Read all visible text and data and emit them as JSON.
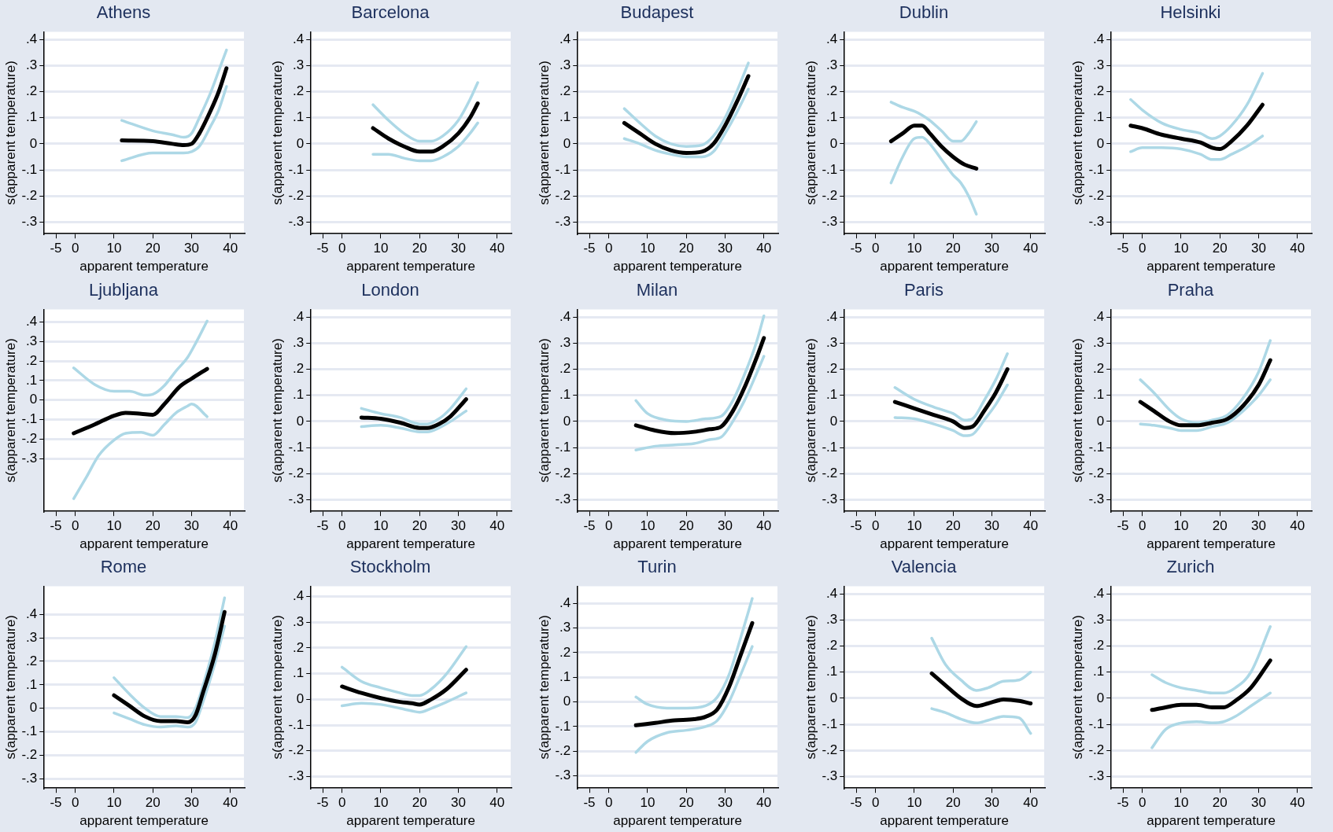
{
  "chart_data": [
    {
      "type": "line",
      "title": "Athens",
      "xlabel": "apparent temperature",
      "ylabel": "s(apparent temperature)",
      "xlim": [
        -8,
        43.5
      ],
      "xticks": [
        -5,
        0,
        10,
        20,
        30,
        40
      ],
      "ylim": [
        -0.345,
        0.43
      ],
      "yticks": [
        {
          "value": -0.3,
          "label": "-.3"
        },
        {
          "value": -0.2,
          "label": "-.2"
        },
        {
          "value": -0.1,
          "label": "-.1"
        },
        {
          "value": 0,
          "label": "0"
        },
        {
          "value": 0.1,
          "label": ".1"
        },
        {
          "value": 0.2,
          "label": ".2"
        },
        {
          "value": 0.3,
          "label": ".3"
        },
        {
          "value": 0.4,
          "label": ".4"
        }
      ],
      "grid": "y",
      "series": [
        {
          "color": "#add8e6",
          "x": [
            12,
            20,
            25,
            28,
            30,
            32,
            35,
            37,
            39
          ],
          "values": [
            -0.065,
            -0.035,
            -0.035,
            -0.035,
            -0.03,
            -0.01,
            0.07,
            0.13,
            0.22
          ]
        },
        {
          "color": "#add8e6",
          "x": [
            12,
            20,
            25,
            28,
            30,
            32,
            35,
            37,
            39
          ],
          "values": [
            0.09,
            0.05,
            0.035,
            0.025,
            0.04,
            0.1,
            0.2,
            0.28,
            0.36
          ]
        },
        {
          "color": "#000000",
          "x": [
            12,
            20,
            25,
            28,
            30,
            32,
            35,
            37,
            39
          ],
          "values": [
            0.013,
            0.01,
            0,
            -0.005,
            0,
            0.04,
            0.13,
            0.2,
            0.29
          ]
        }
      ]
    },
    {
      "type": "line",
      "title": "Barcelona",
      "xlabel": "apparent temperature",
      "ylabel": "s(apparent temperature)",
      "xlim": [
        -8,
        43.5
      ],
      "xticks": [
        -5,
        0,
        10,
        20,
        30,
        40
      ],
      "ylim": [
        -0.345,
        0.43
      ],
      "yticks": [
        {
          "value": -0.3,
          "label": "-.3"
        },
        {
          "value": -0.2,
          "label": "-.2"
        },
        {
          "value": -0.1,
          "label": "-.1"
        },
        {
          "value": 0,
          "label": "0"
        },
        {
          "value": 0.1,
          "label": ".1"
        },
        {
          "value": 0.2,
          "label": ".2"
        },
        {
          "value": 0.3,
          "label": ".3"
        },
        {
          "value": 0.4,
          "label": ".4"
        }
      ],
      "grid": "y",
      "series": [
        {
          "color": "#add8e6",
          "x": [
            8,
            12,
            16,
            20,
            23,
            26,
            30,
            33,
            35
          ],
          "values": [
            -0.04,
            -0.04,
            -0.055,
            -0.065,
            -0.065,
            -0.05,
            -0.01,
            0.04,
            0.08
          ]
        },
        {
          "color": "#add8e6",
          "x": [
            8,
            12,
            16,
            20,
            23,
            26,
            30,
            33,
            35
          ],
          "values": [
            0.15,
            0.09,
            0.04,
            0.01,
            0.01,
            0.03,
            0.09,
            0.17,
            0.235
          ]
        },
        {
          "color": "#000000",
          "x": [
            8,
            12,
            16,
            20,
            23,
            26,
            30,
            33,
            35
          ],
          "values": [
            0.06,
            0.02,
            -0.01,
            -0.03,
            -0.03,
            -0.01,
            0.04,
            0.1,
            0.155
          ]
        }
      ]
    },
    {
      "type": "line",
      "title": "Budapest",
      "xlabel": "apparent temperature",
      "ylabel": "s(apparent temperature)",
      "xlim": [
        -8,
        43.5
      ],
      "xticks": [
        -5,
        0,
        10,
        20,
        30,
        40
      ],
      "ylim": [
        -0.345,
        0.43
      ],
      "yticks": [
        {
          "value": -0.3,
          "label": "-.3"
        },
        {
          "value": -0.2,
          "label": "-.2"
        },
        {
          "value": -0.1,
          "label": "-.1"
        },
        {
          "value": 0,
          "label": "0"
        },
        {
          "value": 0.1,
          "label": ".1"
        },
        {
          "value": 0.2,
          "label": ".2"
        },
        {
          "value": 0.3,
          "label": ".3"
        },
        {
          "value": 0.4,
          "label": ".4"
        }
      ],
      "grid": "y",
      "series": [
        {
          "color": "#add8e6",
          "x": [
            4,
            8,
            12,
            16,
            20,
            24,
            27,
            30,
            33,
            36
          ],
          "values": [
            0.02,
            0,
            -0.025,
            -0.04,
            -0.05,
            -0.05,
            -0.03,
            0.04,
            0.12,
            0.21
          ]
        },
        {
          "color": "#add8e6",
          "x": [
            4,
            8,
            12,
            16,
            20,
            24,
            27,
            30,
            33,
            36
          ],
          "values": [
            0.135,
            0.08,
            0.03,
            0,
            -0.01,
            -0.005,
            0.03,
            0.1,
            0.2,
            0.31
          ]
        },
        {
          "color": "#000000",
          "x": [
            4,
            8,
            12,
            16,
            20,
            24,
            27,
            30,
            33,
            36
          ],
          "values": [
            0.08,
            0.04,
            0,
            -0.025,
            -0.035,
            -0.03,
            0,
            0.07,
            0.16,
            0.26
          ]
        }
      ]
    },
    {
      "type": "line",
      "title": "Dublin",
      "xlabel": "apparent temperature",
      "ylabel": "s(apparent temperature)",
      "xlim": [
        -8,
        43.5
      ],
      "xticks": [
        -5,
        0,
        10,
        20,
        30,
        40
      ],
      "ylim": [
        -0.345,
        0.43
      ],
      "yticks": [
        {
          "value": -0.3,
          "label": "-.3"
        },
        {
          "value": -0.2,
          "label": "-.2"
        },
        {
          "value": -0.1,
          "label": "-.1"
        },
        {
          "value": 0,
          "label": "0"
        },
        {
          "value": 0.1,
          "label": ".1"
        },
        {
          "value": 0.2,
          "label": ".2"
        },
        {
          "value": 0.3,
          "label": ".3"
        },
        {
          "value": 0.4,
          "label": ".4"
        }
      ],
      "grid": "y",
      "series": [
        {
          "color": "#add8e6",
          "x": [
            4,
            7,
            10,
            12,
            14,
            17,
            20,
            22,
            24,
            26
          ],
          "values": [
            -0.15,
            -0.05,
            0.02,
            0.025,
            0,
            -0.06,
            -0.12,
            -0.15,
            -0.2,
            -0.27
          ]
        },
        {
          "color": "#add8e6",
          "x": [
            4,
            7,
            10,
            12,
            14,
            17,
            20,
            22,
            24,
            26
          ],
          "values": [
            0.16,
            0.14,
            0.125,
            0.11,
            0.09,
            0.05,
            0.01,
            0.01,
            0.04,
            0.085
          ]
        },
        {
          "color": "#000000",
          "x": [
            4,
            7,
            10,
            12,
            14,
            17,
            20,
            23,
            26
          ],
          "values": [
            0.01,
            0.04,
            0.07,
            0.07,
            0.04,
            -0.01,
            -0.05,
            -0.08,
            -0.095
          ]
        }
      ]
    },
    {
      "type": "line",
      "title": "Helsinki",
      "xlabel": "apparent temperature",
      "ylabel": "s(apparent temperature)",
      "xlim": [
        -8,
        43.5
      ],
      "xticks": [
        -5,
        0,
        10,
        20,
        30,
        40
      ],
      "ylim": [
        -0.345,
        0.43
      ],
      "yticks": [
        {
          "value": -0.3,
          "label": "-.3"
        },
        {
          "value": -0.2,
          "label": "-.2"
        },
        {
          "value": -0.1,
          "label": "-.1"
        },
        {
          "value": 0,
          "label": "0"
        },
        {
          "value": 0.1,
          "label": ".1"
        },
        {
          "value": 0.2,
          "label": ".2"
        },
        {
          "value": 0.3,
          "label": ".3"
        },
        {
          "value": 0.4,
          "label": ".4"
        }
      ],
      "grid": "y",
      "series": [
        {
          "color": "#add8e6",
          "x": [
            -3,
            0,
            5,
            10,
            15,
            18,
            20,
            23,
            27,
            31
          ],
          "values": [
            -0.03,
            -0.015,
            -0.015,
            -0.02,
            -0.04,
            -0.06,
            -0.06,
            -0.04,
            -0.01,
            0.03
          ]
        },
        {
          "color": "#add8e6",
          "x": [
            -3,
            0,
            5,
            10,
            15,
            18,
            20,
            23,
            27,
            31
          ],
          "values": [
            0.17,
            0.13,
            0.08,
            0.055,
            0.04,
            0.02,
            0.03,
            0.07,
            0.15,
            0.27
          ]
        },
        {
          "color": "#000000",
          "x": [
            -3,
            0,
            5,
            10,
            15,
            18,
            20,
            23,
            27,
            31
          ],
          "values": [
            0.07,
            0.06,
            0.035,
            0.02,
            0.005,
            -0.015,
            -0.02,
            0.01,
            0.07,
            0.15
          ]
        }
      ]
    },
    {
      "type": "line",
      "title": "Ljubljana",
      "xlabel": "apparent temperature",
      "ylabel": "s(apparent temperature)",
      "xlim": [
        -8,
        43.5
      ],
      "xticks": [
        -5,
        0,
        10,
        20,
        30,
        40
      ],
      "ylim": [
        -0.57,
        0.465
      ],
      "yticks": [
        {
          "value": -0.3,
          "label": "-.3"
        },
        {
          "value": -0.2,
          "label": "-.2"
        },
        {
          "value": -0.1,
          "label": "-.1"
        },
        {
          "value": 0,
          "label": "0"
        },
        {
          "value": 0.1,
          "label": ".1"
        },
        {
          "value": 0.2,
          "label": ".2"
        },
        {
          "value": 0.3,
          "label": ".3"
        },
        {
          "value": 0.4,
          "label": ".4"
        }
      ],
      "grid": "y",
      "series": [
        {
          "color": "#add8e6",
          "x": [
            -0.4,
            3,
            6,
            10,
            13,
            17,
            20,
            23,
            26,
            29,
            30,
            34
          ],
          "values": [
            -0.505,
            -0.39,
            -0.285,
            -0.205,
            -0.17,
            -0.165,
            -0.18,
            -0.125,
            -0.065,
            -0.03,
            -0.02,
            -0.085
          ]
        },
        {
          "color": "#add8e6",
          "x": [
            -0.4,
            5,
            10,
            14,
            18,
            20,
            23,
            26,
            29,
            31,
            34
          ],
          "values": [
            0.165,
            0.08,
            0.045,
            0.045,
            0.025,
            0.03,
            0.075,
            0.15,
            0.22,
            0.29,
            0.405
          ]
        },
        {
          "color": "#000000",
          "x": [
            -0.4,
            5,
            10,
            13,
            17,
            20,
            23,
            27,
            30,
            34
          ],
          "values": [
            -0.17,
            -0.125,
            -0.08,
            -0.065,
            -0.07,
            -0.075,
            -0.02,
            0.07,
            0.11,
            0.16
          ]
        }
      ]
    },
    {
      "type": "line",
      "title": "London",
      "xlabel": "apparent temperature",
      "ylabel": "s(apparent temperature)",
      "xlim": [
        -8,
        43.5
      ],
      "xticks": [
        -5,
        0,
        10,
        20,
        30,
        40
      ],
      "ylim": [
        -0.345,
        0.43
      ],
      "yticks": [
        {
          "value": -0.3,
          "label": "-.3"
        },
        {
          "value": -0.2,
          "label": "-.2"
        },
        {
          "value": -0.1,
          "label": "-.1"
        },
        {
          "value": 0,
          "label": "0"
        },
        {
          "value": 0.1,
          "label": ".1"
        },
        {
          "value": 0.2,
          "label": ".2"
        },
        {
          "value": 0.3,
          "label": ".3"
        },
        {
          "value": 0.4,
          "label": ".4"
        }
      ],
      "grid": "y",
      "series": [
        {
          "color": "#add8e6",
          "x": [
            5,
            10,
            15,
            20,
            22,
            25,
            28,
            32
          ],
          "values": [
            -0.02,
            -0.015,
            -0.025,
            -0.04,
            -0.04,
            -0.025,
            0,
            0.04
          ]
        },
        {
          "color": "#add8e6",
          "x": [
            5,
            10,
            15,
            20,
            22,
            25,
            28,
            32
          ],
          "values": [
            0.05,
            0.03,
            0.015,
            -0.01,
            -0.01,
            0.01,
            0.05,
            0.125
          ]
        },
        {
          "color": "#000000",
          "x": [
            5,
            10,
            15,
            20,
            22,
            25,
            28,
            32
          ],
          "values": [
            0.015,
            0.01,
            -0.005,
            -0.025,
            -0.025,
            -0.01,
            0.02,
            0.085
          ]
        }
      ]
    },
    {
      "type": "line",
      "title": "Milan",
      "xlabel": "apparent temperature",
      "ylabel": "s(apparent temperature)",
      "xlim": [
        -8,
        43.5
      ],
      "xticks": [
        -5,
        0,
        10,
        20,
        30,
        40
      ],
      "ylim": [
        -0.345,
        0.43
      ],
      "yticks": [
        {
          "value": -0.3,
          "label": "-.3"
        },
        {
          "value": -0.2,
          "label": "-.2"
        },
        {
          "value": -0.1,
          "label": "-.1"
        },
        {
          "value": 0,
          "label": "0"
        },
        {
          "value": 0.1,
          "label": ".1"
        },
        {
          "value": 0.2,
          "label": ".2"
        },
        {
          "value": 0.3,
          "label": ".3"
        },
        {
          "value": 0.4,
          "label": ".4"
        }
      ],
      "grid": "y",
      "series": [
        {
          "color": "#add8e6",
          "x": [
            7,
            12,
            17,
            22,
            26,
            29,
            32,
            35,
            38,
            40
          ],
          "values": [
            -0.11,
            -0.095,
            -0.09,
            -0.085,
            -0.07,
            -0.06,
            0,
            0.08,
            0.18,
            0.25
          ]
        },
        {
          "color": "#add8e6",
          "x": [
            7,
            10,
            15,
            20,
            25,
            29,
            32,
            35,
            38,
            40
          ],
          "values": [
            0.08,
            0.03,
            0.005,
            0,
            0.01,
            0.02,
            0.08,
            0.18,
            0.3,
            0.405
          ]
        },
        {
          "color": "#000000",
          "x": [
            7,
            12,
            17,
            22,
            26,
            29,
            32,
            35,
            38,
            40
          ],
          "values": [
            -0.015,
            -0.035,
            -0.045,
            -0.04,
            -0.03,
            -0.02,
            0.04,
            0.13,
            0.24,
            0.32
          ]
        }
      ]
    },
    {
      "type": "line",
      "title": "Paris",
      "xlabel": "apparent temperature",
      "ylabel": "s(apparent temperature)",
      "xlim": [
        -8,
        43.5
      ],
      "xticks": [
        -5,
        0,
        10,
        20,
        30,
        40
      ],
      "ylim": [
        -0.345,
        0.43
      ],
      "yticks": [
        {
          "value": -0.3,
          "label": "-.3"
        },
        {
          "value": -0.2,
          "label": "-.2"
        },
        {
          "value": -0.1,
          "label": "-.1"
        },
        {
          "value": 0,
          "label": "0"
        },
        {
          "value": 0.1,
          "label": ".1"
        },
        {
          "value": 0.2,
          "label": ".2"
        },
        {
          "value": 0.3,
          "label": ".3"
        },
        {
          "value": 0.4,
          "label": ".4"
        }
      ],
      "grid": "y",
      "series": [
        {
          "color": "#add8e6",
          "x": [
            5,
            10,
            15,
            20,
            23,
            25,
            28,
            31,
            34
          ],
          "values": [
            0.015,
            0.01,
            -0.01,
            -0.035,
            -0.055,
            -0.05,
            0.005,
            0.065,
            0.14
          ]
        },
        {
          "color": "#add8e6",
          "x": [
            5,
            10,
            15,
            20,
            23,
            25,
            28,
            31,
            34
          ],
          "values": [
            0.13,
            0.085,
            0.055,
            0.03,
            0.005,
            0.01,
            0.08,
            0.16,
            0.26
          ]
        },
        {
          "color": "#000000",
          "x": [
            5,
            10,
            15,
            20,
            23,
            25,
            28,
            31,
            34
          ],
          "values": [
            0.075,
            0.05,
            0.025,
            0,
            -0.025,
            -0.02,
            0.04,
            0.11,
            0.2
          ]
        }
      ]
    },
    {
      "type": "line",
      "title": "Praha",
      "xlabel": "apparent temperature",
      "ylabel": "s(apparent temperature)",
      "xlim": [
        -8,
        43.5
      ],
      "xticks": [
        -5,
        0,
        10,
        20,
        30,
        40
      ],
      "ylim": [
        -0.345,
        0.43
      ],
      "yticks": [
        {
          "value": -0.3,
          "label": "-.3"
        },
        {
          "value": -0.2,
          "label": "-.2"
        },
        {
          "value": -0.1,
          "label": "-.1"
        },
        {
          "value": 0,
          "label": "0"
        },
        {
          "value": 0.1,
          "label": ".1"
        },
        {
          "value": 0.2,
          "label": ".2"
        },
        {
          "value": 0.3,
          "label": ".3"
        },
        {
          "value": 0.4,
          "label": ".4"
        }
      ],
      "grid": "y",
      "series": [
        {
          "color": "#add8e6",
          "x": [
            -0.5,
            3,
            7,
            10,
            14,
            18,
            22,
            26,
            30,
            33
          ],
          "values": [
            -0.01,
            -0.015,
            -0.025,
            -0.035,
            -0.035,
            -0.02,
            -0.005,
            0.04,
            0.1,
            0.16
          ]
        },
        {
          "color": "#add8e6",
          "x": [
            -0.5,
            3,
            7,
            10,
            14,
            18,
            22,
            26,
            30,
            33
          ],
          "values": [
            0.16,
            0.11,
            0.045,
            0.01,
            -0.005,
            0.005,
            0.025,
            0.09,
            0.19,
            0.31
          ]
        },
        {
          "color": "#000000",
          "x": [
            -0.5,
            3,
            7,
            10,
            14,
            18,
            22,
            26,
            30,
            33
          ],
          "values": [
            0.075,
            0.04,
            0,
            -0.015,
            -0.015,
            -0.005,
            0.01,
            0.06,
            0.14,
            0.235
          ]
        }
      ]
    },
    {
      "type": "line",
      "title": "Rome",
      "xlabel": "apparent temperature",
      "ylabel": "s(apparent temperature)",
      "xlim": [
        -8,
        43.5
      ],
      "xticks": [
        -5,
        0,
        10,
        20,
        30,
        40
      ],
      "ylim": [
        -0.34,
        0.52
      ],
      "yticks": [
        {
          "value": -0.3,
          "label": "-.3"
        },
        {
          "value": -0.2,
          "label": "-.2"
        },
        {
          "value": -0.1,
          "label": "-.1"
        },
        {
          "value": 0,
          "label": "0"
        },
        {
          "value": 0.1,
          "label": ".1"
        },
        {
          "value": 0.2,
          "label": ".2"
        },
        {
          "value": 0.3,
          "label": ".3"
        },
        {
          "value": 0.4,
          "label": ".4"
        }
      ],
      "grid": "y",
      "series": [
        {
          "color": "#add8e6",
          "x": [
            10,
            14,
            18,
            22,
            26,
            29,
            31,
            33,
            36,
            38.5
          ],
          "values": [
            -0.02,
            -0.045,
            -0.07,
            -0.08,
            -0.075,
            -0.08,
            -0.06,
            0.03,
            0.19,
            0.35
          ]
        },
        {
          "color": "#add8e6",
          "x": [
            10,
            14,
            18,
            22,
            26,
            29,
            31,
            33,
            36,
            38.5
          ],
          "values": [
            0.13,
            0.06,
            0,
            -0.035,
            -0.035,
            -0.04,
            0,
            0.1,
            0.28,
            0.47
          ]
        },
        {
          "color": "#000000",
          "x": [
            10,
            14,
            18,
            22,
            26,
            29,
            31,
            33,
            36,
            38.5
          ],
          "values": [
            0.055,
            0.01,
            -0.035,
            -0.055,
            -0.055,
            -0.06,
            -0.03,
            0.07,
            0.23,
            0.41
          ]
        }
      ]
    },
    {
      "type": "line",
      "title": "Stockholm",
      "xlabel": "apparent temperature",
      "ylabel": "s(apparent temperature)",
      "xlim": [
        -8,
        43.5
      ],
      "xticks": [
        -5,
        0,
        10,
        20,
        30,
        40
      ],
      "ylim": [
        -0.345,
        0.44
      ],
      "yticks": [
        {
          "value": -0.3,
          "label": "-.3"
        },
        {
          "value": -0.2,
          "label": "-.2"
        },
        {
          "value": -0.1,
          "label": "-.1"
        },
        {
          "value": 0,
          "label": "0"
        },
        {
          "value": 0.1,
          "label": ".1"
        },
        {
          "value": 0.2,
          "label": ".2"
        },
        {
          "value": 0.3,
          "label": ".3"
        },
        {
          "value": 0.4,
          "label": ".4"
        }
      ],
      "grid": "y",
      "series": [
        {
          "color": "#add8e6",
          "x": [
            0,
            5,
            10,
            15,
            18,
            20,
            23,
            27,
            32
          ],
          "values": [
            -0.025,
            -0.015,
            -0.02,
            -0.035,
            -0.045,
            -0.05,
            -0.035,
            -0.01,
            0.025
          ]
        },
        {
          "color": "#add8e6",
          "x": [
            0,
            5,
            10,
            15,
            18,
            20,
            23,
            27,
            32
          ],
          "values": [
            0.125,
            0.07,
            0.045,
            0.025,
            0.015,
            0.015,
            0.04,
            0.1,
            0.205
          ]
        },
        {
          "color": "#000000",
          "x": [
            0,
            5,
            10,
            15,
            18,
            20,
            23,
            27,
            32
          ],
          "values": [
            0.05,
            0.025,
            0.005,
            -0.01,
            -0.015,
            -0.02,
            0,
            0.04,
            0.115
          ]
        }
      ]
    },
    {
      "type": "line",
      "title": "Turin",
      "xlabel": "apparent temperature",
      "ylabel": "s(apparent temperature)",
      "xlim": [
        -8,
        43.5
      ],
      "xticks": [
        -5,
        0,
        10,
        20,
        30,
        40
      ],
      "ylim": [
        -0.35,
        0.47
      ],
      "yticks": [
        {
          "value": -0.3,
          "label": "-.3"
        },
        {
          "value": -0.2,
          "label": "-.2"
        },
        {
          "value": -0.1,
          "label": "-.1"
        },
        {
          "value": 0,
          "label": "0"
        },
        {
          "value": 0.1,
          "label": ".1"
        },
        {
          "value": 0.2,
          "label": ".2"
        },
        {
          "value": 0.3,
          "label": ".3"
        },
        {
          "value": 0.4,
          "label": ".4"
        }
      ],
      "grid": "y",
      "series": [
        {
          "color": "#add8e6",
          "x": [
            7,
            10,
            15,
            20,
            25,
            28,
            31,
            34,
            37
          ],
          "values": [
            -0.205,
            -0.16,
            -0.125,
            -0.115,
            -0.1,
            -0.075,
            0,
            0.11,
            0.225
          ]
        },
        {
          "color": "#add8e6",
          "x": [
            7,
            10,
            15,
            20,
            25,
            28,
            31,
            34,
            37
          ],
          "values": [
            0.02,
            -0.01,
            -0.025,
            -0.025,
            -0.015,
            0.02,
            0.11,
            0.26,
            0.42
          ]
        },
        {
          "color": "#000000",
          "x": [
            7,
            12,
            17,
            22,
            25,
            28,
            31,
            34,
            37
          ],
          "values": [
            -0.095,
            -0.085,
            -0.075,
            -0.07,
            -0.06,
            -0.03,
            0.06,
            0.19,
            0.32
          ]
        }
      ]
    },
    {
      "type": "line",
      "title": "Valencia",
      "xlabel": "apparent temperature",
      "ylabel": "s(apparent temperature)",
      "xlim": [
        -8,
        43.5
      ],
      "xticks": [
        -5,
        0,
        10,
        20,
        30,
        40
      ],
      "ylim": [
        -0.345,
        0.43
      ],
      "yticks": [
        {
          "value": -0.3,
          "label": "-.3"
        },
        {
          "value": -0.2,
          "label": "-.2"
        },
        {
          "value": -0.1,
          "label": "-.1"
        },
        {
          "value": 0,
          "label": "0"
        },
        {
          "value": 0.1,
          "label": ".1"
        },
        {
          "value": 0.2,
          "label": ".2"
        },
        {
          "value": 0.3,
          "label": ".3"
        },
        {
          "value": 0.4,
          "label": ".4"
        }
      ],
      "grid": "y",
      "series": [
        {
          "color": "#add8e6",
          "x": [
            14.5,
            18,
            22,
            26,
            29,
            33,
            37,
            40
          ],
          "values": [
            -0.04,
            -0.055,
            -0.08,
            -0.095,
            -0.085,
            -0.07,
            -0.075,
            -0.135
          ]
        },
        {
          "color": "#add8e6",
          "x": [
            14.5,
            18,
            22,
            26,
            29,
            33,
            37,
            40
          ],
          "values": [
            0.23,
            0.13,
            0.07,
            0.03,
            0.04,
            0.065,
            0.07,
            0.1
          ]
        },
        {
          "color": "#000000",
          "x": [
            14.5,
            18,
            22,
            26,
            29,
            33,
            37,
            40
          ],
          "values": [
            0.095,
            0.05,
            0,
            -0.03,
            -0.02,
            -0.005,
            -0.01,
            -0.02
          ]
        }
      ]
    },
    {
      "type": "line",
      "title": "Zurich",
      "xlabel": "apparent temperature",
      "ylabel": "s(apparent temperature)",
      "xlim": [
        -8,
        43.5
      ],
      "xticks": [
        -5,
        0,
        10,
        20,
        30,
        40
      ],
      "ylim": [
        -0.345,
        0.43
      ],
      "yticks": [
        {
          "value": -0.3,
          "label": "-.3"
        },
        {
          "value": -0.2,
          "label": "-.2"
        },
        {
          "value": -0.1,
          "label": "-.1"
        },
        {
          "value": 0,
          "label": "0"
        },
        {
          "value": 0.1,
          "label": ".1"
        },
        {
          "value": 0.2,
          "label": ".2"
        },
        {
          "value": 0.3,
          "label": ".3"
        },
        {
          "value": 0.4,
          "label": ".4"
        }
      ],
      "grid": "y",
      "series": [
        {
          "color": "#add8e6",
          "x": [
            2.5,
            6,
            10,
            14,
            18,
            21,
            24,
            28,
            33
          ],
          "values": [
            -0.19,
            -0.12,
            -0.095,
            -0.09,
            -0.095,
            -0.09,
            -0.07,
            -0.03,
            0.02
          ]
        },
        {
          "color": "#add8e6",
          "x": [
            2.5,
            6,
            10,
            14,
            18,
            21,
            24,
            28,
            33
          ],
          "values": [
            0.09,
            0.06,
            0.04,
            0.03,
            0.02,
            0.02,
            0.04,
            0.1,
            0.275
          ]
        },
        {
          "color": "#000000",
          "x": [
            2.5,
            6,
            10,
            14,
            18,
            21,
            24,
            28,
            33
          ],
          "values": [
            -0.045,
            -0.035,
            -0.025,
            -0.025,
            -0.035,
            -0.035,
            -0.01,
            0.04,
            0.145
          ]
        }
      ]
    }
  ]
}
